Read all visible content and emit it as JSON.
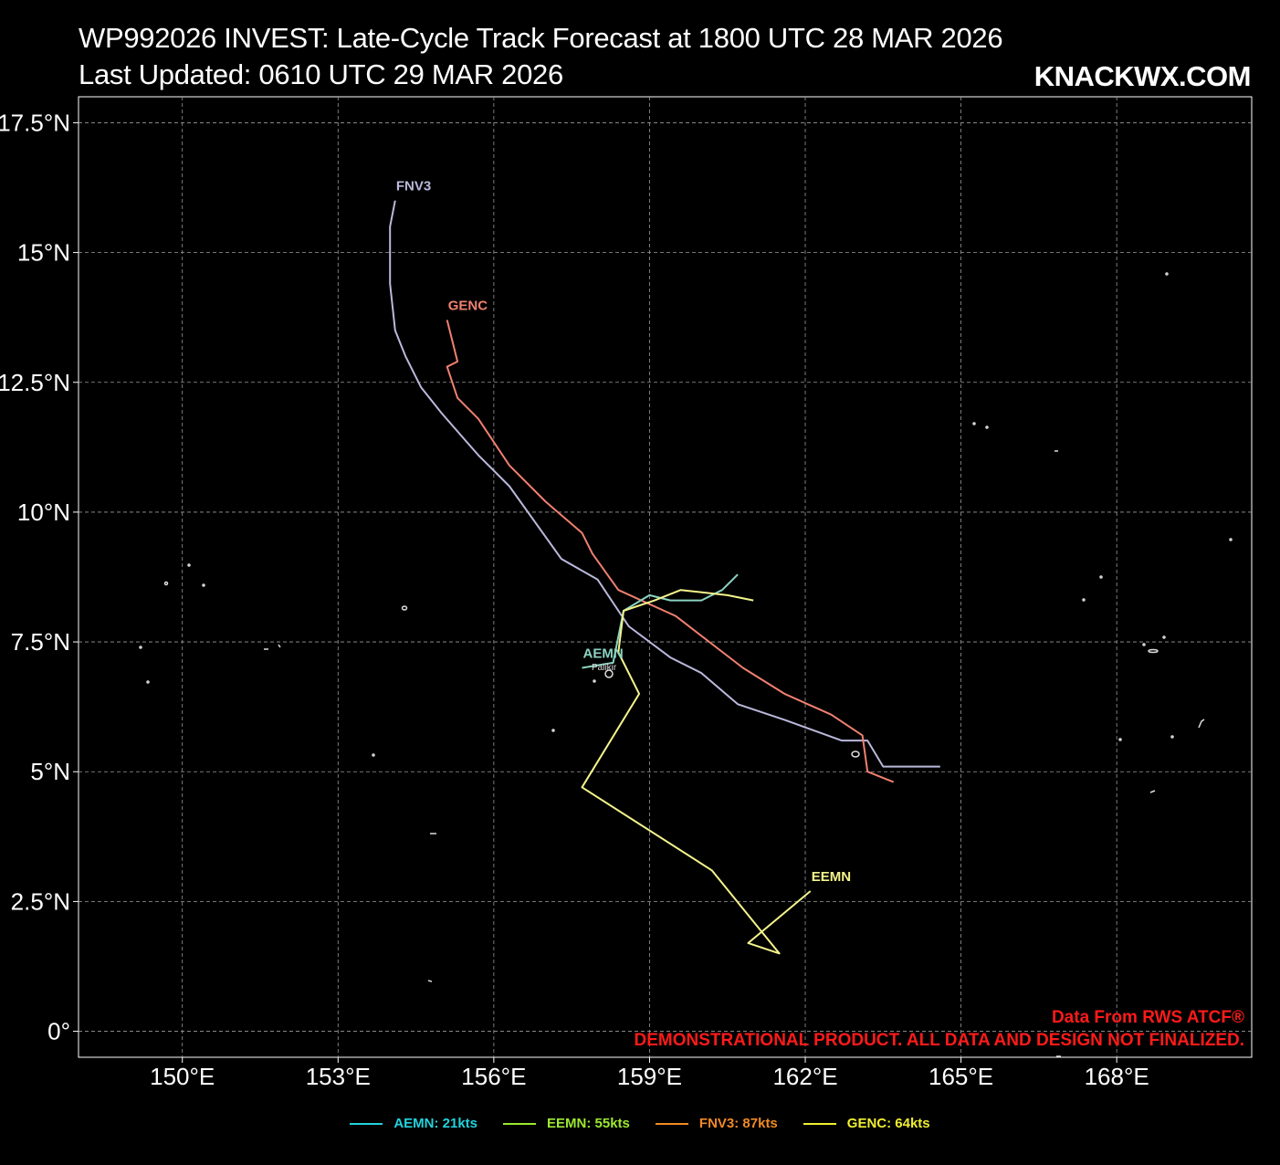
{
  "header": {
    "title_line1": "WP992026 INVEST: Late-Cycle Track Forecast at 1800 UTC 28 MAR 2026",
    "title_line2": "Last Updated: 0610 UTC 29 MAR 2026",
    "brand": "KNACKWX.COM"
  },
  "notice": {
    "source": "Data From RWS ATCF®",
    "disclaimer": "DEMONSTRATIONAL PRODUCT. ALL DATA AND DESIGN NOT FINALIZED."
  },
  "place_label": "Palikir",
  "legend": [
    {
      "label": "AEMN: 21kts",
      "color": "#22d3dd"
    },
    {
      "label": "EEMN: 55kts",
      "color": "#9de830"
    },
    {
      "label": "FNV3: 87kts",
      "color": "#f08a24"
    },
    {
      "label": "GENC: 64kts",
      "color": "#f0ee30"
    }
  ],
  "chart_data": {
    "type": "line",
    "xaxis": {
      "ticks": [
        150,
        153,
        156,
        159,
        162,
        165,
        168
      ],
      "tick_labels": [
        "150°E",
        "153°E",
        "156°E",
        "159°E",
        "162°E",
        "165°E",
        "168°E"
      ],
      "range": [
        148.0,
        170.6
      ]
    },
    "yaxis": {
      "ticks": [
        0,
        2.5,
        5,
        7.5,
        10,
        12.5,
        15,
        17.5
      ],
      "tick_labels": [
        "0°",
        "2.5°N",
        "5°N",
        "7.5°N",
        "10°N",
        "12.5°N",
        "15°N",
        "17.5°N"
      ],
      "range": [
        -0.5,
        18.0
      ]
    },
    "grid": true,
    "series": [
      {
        "name": "FNV3",
        "color": "#bab9dc",
        "points": [
          [
            164.6,
            5.1
          ],
          [
            163.5,
            5.1
          ],
          [
            163.2,
            5.6
          ],
          [
            162.7,
            5.6
          ],
          [
            161.6,
            6.0
          ],
          [
            160.7,
            6.3
          ],
          [
            160.0,
            6.9
          ],
          [
            159.4,
            7.2
          ],
          [
            158.6,
            7.8
          ],
          [
            158.0,
            8.7
          ],
          [
            157.3,
            9.1
          ],
          [
            156.3,
            10.5
          ],
          [
            155.7,
            11.1
          ],
          [
            155.0,
            11.9
          ],
          [
            154.6,
            12.4
          ],
          [
            154.3,
            13.0
          ],
          [
            154.1,
            13.5
          ],
          [
            154.0,
            14.4
          ],
          [
            154.0,
            15.5
          ],
          [
            154.1,
            16.0
          ]
        ]
      },
      {
        "name": "GENC",
        "color": "#f08070",
        "points": [
          [
            163.7,
            4.8
          ],
          [
            163.2,
            5.0
          ],
          [
            163.1,
            5.7
          ],
          [
            162.5,
            6.1
          ],
          [
            161.6,
            6.5
          ],
          [
            160.8,
            7.0
          ],
          [
            159.5,
            8.0
          ],
          [
            158.4,
            8.5
          ],
          [
            157.9,
            9.2
          ],
          [
            157.7,
            9.6
          ],
          [
            157.0,
            10.2
          ],
          [
            156.3,
            10.9
          ],
          [
            155.7,
            11.8
          ],
          [
            155.3,
            12.2
          ],
          [
            155.1,
            12.8
          ],
          [
            155.3,
            12.9
          ],
          [
            155.1,
            13.7
          ]
        ]
      },
      {
        "name": "AEMN",
        "color": "#8bd3c0",
        "points": [
          [
            157.7,
            7.0
          ],
          [
            158.3,
            7.1
          ],
          [
            158.5,
            8.1
          ],
          [
            159.0,
            8.4
          ],
          [
            159.4,
            8.3
          ],
          [
            160.0,
            8.3
          ],
          [
            160.4,
            8.5
          ],
          [
            160.7,
            8.8
          ]
        ]
      },
      {
        "name": "EEMN",
        "color": "#f4f48c",
        "points": [
          [
            161.0,
            8.3
          ],
          [
            160.5,
            8.4
          ],
          [
            159.6,
            8.5
          ],
          [
            159.1,
            8.3
          ],
          [
            158.5,
            8.1
          ],
          [
            158.4,
            7.3
          ],
          [
            158.8,
            6.5
          ],
          [
            157.7,
            4.7
          ],
          [
            160.2,
            3.1
          ],
          [
            161.5,
            1.5
          ],
          [
            160.9,
            1.7
          ],
          [
            162.1,
            2.7
          ]
        ]
      }
    ],
    "track_labels": [
      {
        "name": "FNV3",
        "lon": 154.1,
        "lat": 16.0
      },
      {
        "name": "GENC",
        "lon": 155.1,
        "lat": 13.7
      },
      {
        "name": "AEMN",
        "lon": 157.7,
        "lat": 7.0
      },
      {
        "name": "EEMN",
        "lon": 162.1,
        "lat": 2.7
      }
    ]
  }
}
